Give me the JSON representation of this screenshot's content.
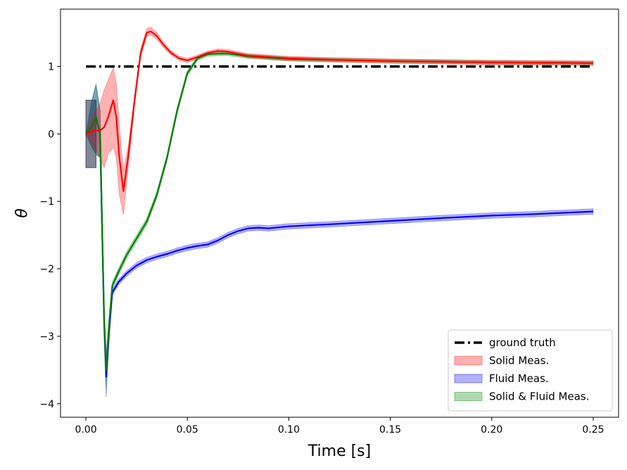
{
  "chart_data": {
    "type": "line",
    "title": "",
    "xlabel": "Time [s]",
    "ylabel": "θ",
    "xlim": [
      -0.0125,
      0.2625
    ],
    "ylim": [
      -4.2,
      1.85
    ],
    "xticks": [
      0.0,
      0.05,
      0.1,
      0.15,
      0.2,
      0.25
    ],
    "xtick_labels": [
      "0.00",
      "0.05",
      "0.10",
      "0.15",
      "0.20",
      "0.25"
    ],
    "yticks": [
      -4,
      -3,
      -2,
      -1,
      0,
      1
    ],
    "ytick_labels": [
      "−4",
      "−3",
      "−2",
      "−1",
      "0",
      "1"
    ],
    "grid": false,
    "legend_position": "bottom-right",
    "legend": [
      {
        "label": "ground truth",
        "kind": "line",
        "color": "#000000"
      },
      {
        "label": "Solid Meas.",
        "kind": "band",
        "color": "#ff0000"
      },
      {
        "label": "Fluid Meas.",
        "kind": "band",
        "color": "#0000ff"
      },
      {
        "label": "Solid & Fluid Meas.",
        "kind": "band",
        "color": "#008000"
      }
    ],
    "ground_truth": {
      "x": [
        0.0,
        0.25
      ],
      "y": [
        1.0,
        1.0
      ],
      "color": "#000000",
      "style": "dashdot"
    },
    "prior_band": {
      "x": [
        0.0,
        0.005
      ],
      "lower": [
        -0.5,
        -0.5
      ],
      "upper": [
        0.5,
        0.5
      ],
      "color": "#2f3650"
    },
    "series": [
      {
        "id": "fluid",
        "color": "#0000ff",
        "x": [
          0.0,
          0.003,
          0.005,
          0.007,
          0.009,
          0.01,
          0.0115,
          0.013,
          0.016,
          0.02,
          0.025,
          0.03,
          0.035,
          0.04,
          0.045,
          0.05,
          0.055,
          0.06,
          0.065,
          0.07,
          0.075,
          0.08,
          0.085,
          0.09,
          0.1,
          0.12,
          0.15,
          0.18,
          0.2,
          0.22,
          0.25
        ],
        "y": [
          0.0,
          0.12,
          0.25,
          0.0,
          -2.8,
          -3.6,
          -2.9,
          -2.35,
          -2.2,
          -2.07,
          -1.95,
          -1.87,
          -1.82,
          -1.78,
          -1.73,
          -1.69,
          -1.66,
          -1.64,
          -1.58,
          -1.5,
          -1.44,
          -1.4,
          -1.39,
          -1.4,
          -1.37,
          -1.34,
          -1.29,
          -1.24,
          -1.21,
          -1.19,
          -1.15
        ],
        "lower": [
          0.0,
          -0.2,
          -0.3,
          -0.35,
          -3.0,
          -3.9,
          -3.0,
          -2.4,
          -2.24,
          -2.11,
          -1.99,
          -1.91,
          -1.86,
          -1.82,
          -1.77,
          -1.73,
          -1.7,
          -1.68,
          -1.62,
          -1.54,
          -1.48,
          -1.44,
          -1.43,
          -1.44,
          -1.41,
          -1.38,
          -1.33,
          -1.28,
          -1.25,
          -1.23,
          -1.19
        ],
        "upper": [
          0.0,
          0.5,
          0.72,
          0.35,
          -2.6,
          -3.3,
          -2.8,
          -2.3,
          -2.16,
          -2.03,
          -1.91,
          -1.83,
          -1.78,
          -1.74,
          -1.69,
          -1.65,
          -1.62,
          -1.6,
          -1.54,
          -1.46,
          -1.4,
          -1.36,
          -1.35,
          -1.36,
          -1.33,
          -1.3,
          -1.25,
          -1.2,
          -1.17,
          -1.15,
          -1.11
        ]
      },
      {
        "id": "solid_fluid",
        "color": "#008000",
        "x": [
          0.0,
          0.003,
          0.005,
          0.007,
          0.009,
          0.01,
          0.0115,
          0.013,
          0.016,
          0.02,
          0.025,
          0.03,
          0.035,
          0.04,
          0.045,
          0.05,
          0.055,
          0.06,
          0.065,
          0.07,
          0.075,
          0.08,
          0.1,
          0.15,
          0.2,
          0.25
        ],
        "y": [
          0.0,
          0.12,
          0.25,
          0.0,
          -2.75,
          -3.5,
          -2.8,
          -2.25,
          -2.05,
          -1.8,
          -1.55,
          -1.3,
          -0.9,
          -0.35,
          0.35,
          0.9,
          1.12,
          1.18,
          1.19,
          1.19,
          1.17,
          1.15,
          1.11,
          1.08,
          1.06,
          1.05
        ],
        "lower": [
          0.0,
          -0.2,
          -0.3,
          -0.35,
          -2.95,
          -3.75,
          -2.9,
          -2.3,
          -2.1,
          -1.85,
          -1.6,
          -1.35,
          -0.95,
          -0.4,
          0.3,
          0.86,
          1.09,
          1.15,
          1.16,
          1.16,
          1.14,
          1.12,
          1.08,
          1.05,
          1.03,
          1.02
        ],
        "upper": [
          0.0,
          0.5,
          0.75,
          0.35,
          -2.55,
          -3.25,
          -2.7,
          -2.2,
          -2.0,
          -1.75,
          -1.5,
          -1.25,
          -0.85,
          -0.3,
          0.4,
          0.94,
          1.15,
          1.21,
          1.22,
          1.22,
          1.2,
          1.18,
          1.14,
          1.11,
          1.09,
          1.08
        ]
      },
      {
        "id": "solid",
        "color": "#ff0000",
        "x": [
          0.0,
          0.004,
          0.007,
          0.009,
          0.011,
          0.0135,
          0.015,
          0.0165,
          0.0185,
          0.021,
          0.024,
          0.027,
          0.03,
          0.032,
          0.035,
          0.038,
          0.042,
          0.046,
          0.05,
          0.055,
          0.06,
          0.065,
          0.07,
          0.075,
          0.08,
          0.09,
          0.1,
          0.12,
          0.15,
          0.2,
          0.25
        ],
        "y": [
          0.0,
          0.05,
          0.05,
          0.1,
          0.25,
          0.5,
          0.25,
          -0.35,
          -0.85,
          -0.3,
          0.5,
          1.2,
          1.5,
          1.52,
          1.45,
          1.33,
          1.2,
          1.12,
          1.09,
          1.14,
          1.2,
          1.23,
          1.22,
          1.19,
          1.16,
          1.14,
          1.12,
          1.1,
          1.08,
          1.06,
          1.05
        ],
        "lower": [
          0.0,
          -0.2,
          -0.35,
          -0.5,
          -0.3,
          -0.2,
          -0.35,
          -0.9,
          -1.2,
          -0.45,
          0.42,
          1.14,
          1.45,
          1.47,
          1.4,
          1.29,
          1.17,
          1.09,
          1.06,
          1.11,
          1.17,
          1.2,
          1.19,
          1.16,
          1.13,
          1.11,
          1.09,
          1.07,
          1.05,
          1.03,
          1.02
        ],
        "upper": [
          0.0,
          0.3,
          0.45,
          0.65,
          0.8,
          0.98,
          0.75,
          0.1,
          -0.55,
          -0.15,
          0.58,
          1.26,
          1.56,
          1.58,
          1.5,
          1.37,
          1.23,
          1.15,
          1.12,
          1.17,
          1.23,
          1.26,
          1.25,
          1.22,
          1.19,
          1.17,
          1.15,
          1.13,
          1.11,
          1.09,
          1.08
        ]
      }
    ]
  }
}
